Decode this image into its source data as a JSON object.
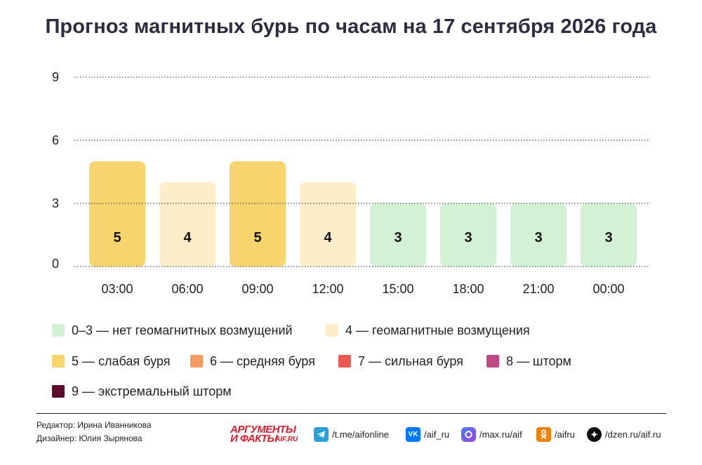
{
  "title": "Прогноз магнитных бурь по часам на 17 сентября 2026 года",
  "chart_data": {
    "type": "bar",
    "categories": [
      "03:00",
      "06:00",
      "09:00",
      "12:00",
      "15:00",
      "18:00",
      "21:00",
      "00:00"
    ],
    "values": [
      5,
      4,
      5,
      4,
      3,
      3,
      3,
      3
    ],
    "yticks": [
      0,
      3,
      6,
      9
    ],
    "ylim": [
      0,
      9
    ],
    "grid": "dotted horizontal",
    "data_labels": true,
    "xlabel": "",
    "ylabel": ""
  },
  "level_colors": {
    "0-3": "#d3f2d5",
    "4": "#fdedc8",
    "5": "#f8d46e",
    "6": "#f59a62",
    "7": "#eb5a4e",
    "8": "#c04a86",
    "9": "#5b0c2a"
  },
  "legend": [
    {
      "label": "0–3 — нет геомагнитных возмущений",
      "color": "#d3f2d5"
    },
    {
      "label": "4 — геомагнитные возмущения",
      "color": "#fdedc8"
    },
    {
      "label": "5 — слабая буря",
      "color": "#f8d46e"
    },
    {
      "label": "6 — средняя буря",
      "color": "#f59a62"
    },
    {
      "label": "7 — сильная буря",
      "color": "#eb5a4e"
    },
    {
      "label": "8 — шторм",
      "color": "#c04a86"
    },
    {
      "label": "9 — экстремальный шторм",
      "color": "#5b0c2a"
    }
  ],
  "credits": {
    "editor": "Редактор: Ирина Иванникова",
    "designer": "Дизайнер: Юлия Зырянова"
  },
  "logo": {
    "line1": "АРГУМЕНТЫ",
    "line2": "И ФАКТЫ",
    "domain": "AIF.RU"
  },
  "social": [
    {
      "icon": "telegram-icon",
      "label": "/t.me/aifonline",
      "color": "#2b9fd8"
    },
    {
      "icon": "vk-icon",
      "label": "/aif_ru",
      "color": "#0077ff"
    },
    {
      "icon": "max-icon",
      "label": "/max.ru/aif",
      "color": "#6a4cf0"
    },
    {
      "icon": "odnoklassniki-icon",
      "label": "/aifru",
      "color": "#ee8208"
    },
    {
      "icon": "dzen-icon",
      "label": "/dzen.ru/aif.ru",
      "color": "#111111"
    }
  ]
}
